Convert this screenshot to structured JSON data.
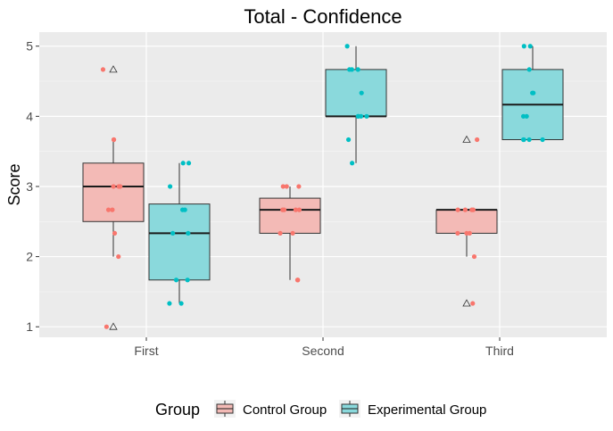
{
  "chart_data": {
    "type": "boxplot",
    "title": "Total - Confidence",
    "xlabel": "",
    "ylabel": "Score",
    "ylim": [
      0.85,
      5.2
    ],
    "yticks": [
      1,
      2,
      3,
      4,
      5
    ],
    "categories": [
      "First",
      "Second",
      "Third"
    ],
    "legend": {
      "title": "Group",
      "position": "bottom"
    },
    "grid": true,
    "colors": {
      "panel": "#EBEBEB",
      "grid_major": "#FFFFFF",
      "control_fill": "#F3BAB6",
      "control_point": "#F8766D",
      "experimental_fill": "#8AD9DC",
      "experimental_point": "#00BFC4"
    },
    "series": [
      {
        "name": "Control Group",
        "boxes": [
          {
            "category": "First",
            "whisker_low": 2.0,
            "q1": 2.5,
            "median": 3.0,
            "q3": 3.333,
            "whisker_high": 3.667,
            "outliers": [
              1.0,
              4.667
            ]
          },
          {
            "category": "Second",
            "whisker_low": 1.667,
            "q1": 2.333,
            "median": 2.667,
            "q3": 2.833,
            "whisker_high": 3.0,
            "outliers": []
          },
          {
            "category": "Third",
            "whisker_low": 2.0,
            "q1": 2.333,
            "median": 2.667,
            "q3": 2.667,
            "whisker_high": 2.667,
            "outliers": [
              1.333,
              3.667
            ]
          }
        ],
        "points": [
          {
            "category": "First",
            "values": [
              1.0,
              2.0,
              2.333,
              2.667,
              2.667,
              3.0,
              3.0,
              3.0,
              3.667,
              3.667,
              4.667
            ]
          },
          {
            "category": "Second",
            "values": [
              1.667,
              1.667,
              2.333,
              2.333,
              2.667,
              2.667,
              2.667,
              2.667,
              3.0,
              3.0,
              3.0
            ]
          },
          {
            "category": "Third",
            "values": [
              1.333,
              2.0,
              2.333,
              2.333,
              2.333,
              2.667,
              2.667,
              2.667,
              2.667,
              3.667
            ]
          }
        ]
      },
      {
        "name": "Experimental Group",
        "boxes": [
          {
            "category": "First",
            "whisker_low": 1.333,
            "q1": 1.667,
            "median": 2.333,
            "q3": 2.75,
            "whisker_high": 3.333,
            "outliers": []
          },
          {
            "category": "Second",
            "whisker_low": 3.333,
            "q1": 4.0,
            "median": 4.0,
            "q3": 4.667,
            "whisker_high": 5.0,
            "outliers": []
          },
          {
            "category": "Third",
            "whisker_low": 3.667,
            "q1": 3.667,
            "median": 4.167,
            "q3": 4.667,
            "whisker_high": 5.0,
            "outliers": []
          }
        ],
        "points": [
          {
            "category": "First",
            "values": [
              1.333,
              1.333,
              1.667,
              1.667,
              2.333,
              2.333,
              2.667,
              2.667,
              3.0,
              3.333,
              3.333
            ]
          },
          {
            "category": "Second",
            "values": [
              3.333,
              3.667,
              4.0,
              4.0,
              4.0,
              4.0,
              4.333,
              4.667,
              4.667,
              4.667,
              5.0
            ]
          },
          {
            "category": "Third",
            "values": [
              3.667,
              3.667,
              3.667,
              3.667,
              4.0,
              4.0,
              4.333,
              4.333,
              4.667,
              5.0,
              5.0
            ]
          }
        ]
      }
    ]
  }
}
